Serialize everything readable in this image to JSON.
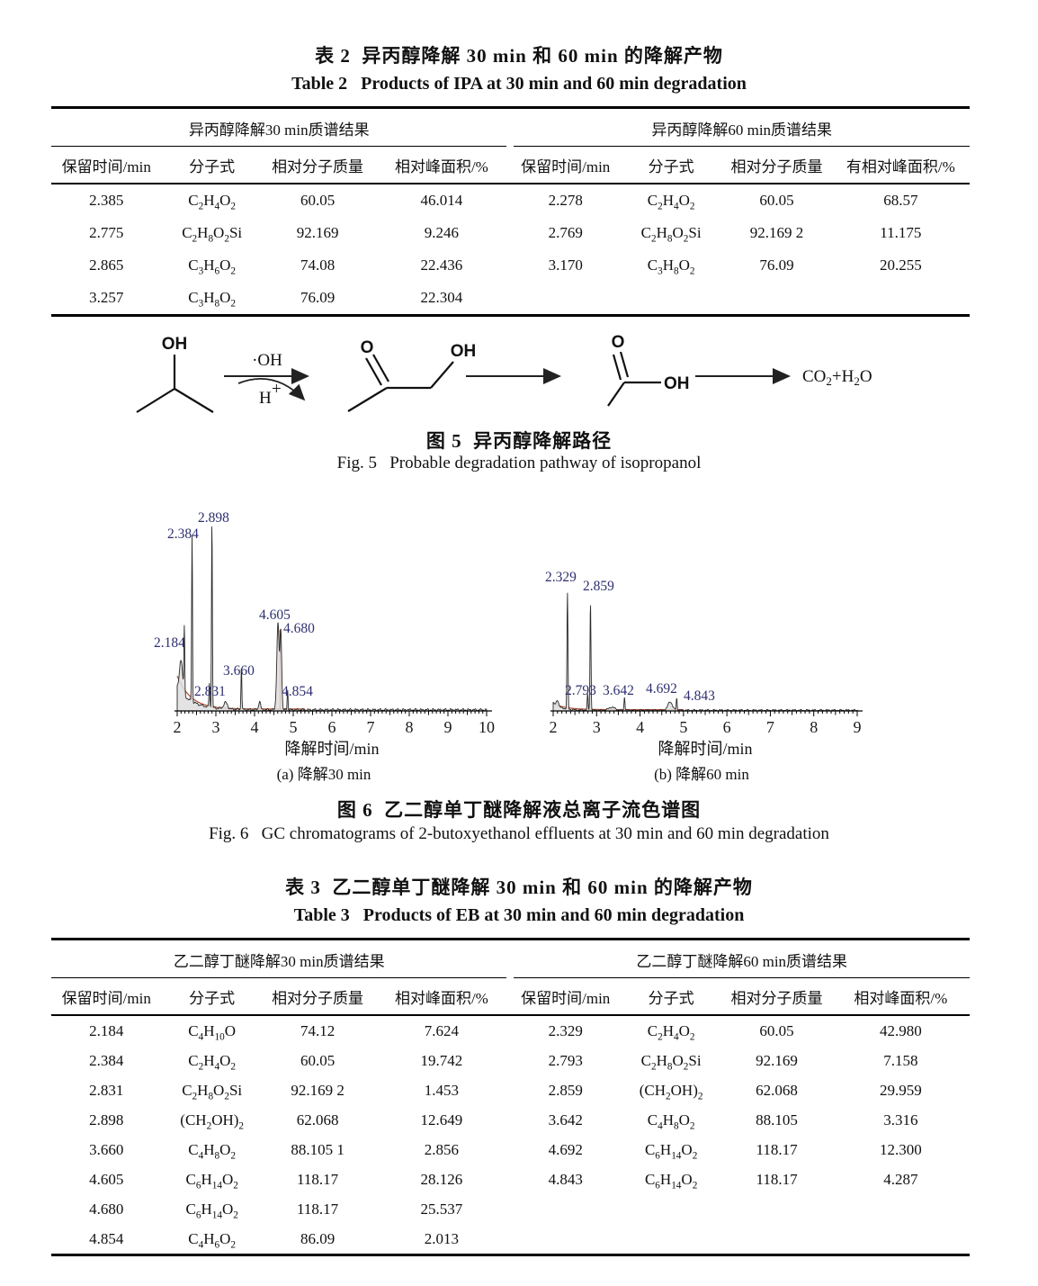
{
  "accent_colors": {
    "peak_label": "#2e2f70",
    "trace": "#2a2a2a",
    "integration_baseline": "#b05030",
    "rule": "#000000"
  },
  "table2": {
    "title_zh": "表 2  异丙醇降解 30 min 和 60 min 的降解产物",
    "title_en": "Table 2   Products of IPA at 30 min and 60 min degradation",
    "group_left": "异丙醇降解30 min质谱结果",
    "group_right": "异丙醇降解60 min质谱结果",
    "columns_left": [
      "保留时间/min",
      "分子式",
      "相对分子质量",
      "相对峰面积/%"
    ],
    "columns_right": [
      "保留时间/min",
      "分子式",
      "相对分子质量",
      "有相对峰面积/%"
    ],
    "rows": [
      [
        "2.385",
        "C2H4O2",
        "60.05",
        "46.014",
        "2.278",
        "C2H4O2",
        "60.05",
        "68.57"
      ],
      [
        "2.775",
        "C2H8O2Si",
        "92.169",
        "9.246",
        "2.769",
        "C2H8O2Si",
        "92.169 2",
        "11.175"
      ],
      [
        "2.865",
        "C3H6O2",
        "74.08",
        "22.436",
        "3.170",
        "C3H8O2",
        "76.09",
        "20.255"
      ],
      [
        "3.257",
        "C3H8O2",
        "76.09",
        "22.304",
        "",
        "",
        "",
        ""
      ]
    ]
  },
  "figure5": {
    "caption_zh": "图 5  异丙醇降解路径",
    "caption_en": "Fig. 5   Probable degradation pathway of isopropanol",
    "labels": {
      "hydroxyl": "OH",
      "oxygen": "O",
      "radical": "·OH",
      "proton_base": "H",
      "proton_sup": "+",
      "product_parts": [
        "CO",
        "2",
        "+H",
        "2",
        "O"
      ]
    }
  },
  "figure6": {
    "caption_zh": "图 6  乙二醇单丁醚降解液总离子流色谱图",
    "caption_en": "Fig. 6   GC chromatograms of 2-butoxyethanol effluents at 30 min and 60 min degradation"
  },
  "chart_data": [
    {
      "type": "line",
      "panel": "a",
      "title": "(a) 降解30 min",
      "xlabel": "降解时间/min",
      "xlim": [
        2,
        10
      ],
      "xticks": [
        2,
        3,
        4,
        5,
        6,
        7,
        8,
        9,
        10
      ],
      "grid": false,
      "peaks": [
        {
          "rt": 2.184,
          "label": "2.184",
          "rel_height": 0.36
        },
        {
          "rt": 2.384,
          "label": "2.384",
          "rel_height": 0.9
        },
        {
          "rt": 2.831,
          "label": "2.831",
          "rel_height": 0.13
        },
        {
          "rt": 2.898,
          "label": "2.898",
          "rel_height": 1.0
        },
        {
          "rt": 3.66,
          "label": "3.660",
          "rel_height": 0.24
        },
        {
          "rt": 4.605,
          "label": "4.605",
          "rel_height": 0.47
        },
        {
          "rt": 4.68,
          "label": "4.680",
          "rel_height": 0.42
        },
        {
          "rt": 4.854,
          "label": "4.854",
          "rel_height": 0.11
        }
      ]
    },
    {
      "type": "line",
      "panel": "b",
      "title": "(b) 降解60 min",
      "xlabel": "降解时间/min",
      "xlim": [
        2,
        9
      ],
      "xticks": [
        2,
        3,
        4,
        5,
        6,
        7,
        8,
        9
      ],
      "grid": false,
      "peaks": [
        {
          "rt": 2.329,
          "label": "2.329",
          "rel_height": 0.95
        },
        {
          "rt": 2.793,
          "label": "2.793",
          "rel_height": 0.13
        },
        {
          "rt": 2.859,
          "label": "2.859",
          "rel_height": 0.88
        },
        {
          "rt": 3.642,
          "label": "3.642",
          "rel_height": 0.11
        },
        {
          "rt": 4.692,
          "label": "4.692",
          "rel_height": 0.07
        },
        {
          "rt": 4.843,
          "label": "4.843",
          "rel_height": 0.1
        }
      ]
    }
  ],
  "table3": {
    "title_zh": "表 3  乙二醇单丁醚降解 30 min 和 60 min 的降解产物",
    "title_en": "Table 3   Products of EB at 30 min and 60 min degradation",
    "group_left": "乙二醇丁醚降解30 min质谱结果",
    "group_right": "乙二醇丁醚降解60 min质谱结果",
    "columns_left": [
      "保留时间/min",
      "分子式",
      "相对分子质量",
      "相对峰面积/%"
    ],
    "columns_right": [
      "保留时间/min",
      "分子式",
      "相对分子质量",
      "相对峰面积/%"
    ],
    "rows": [
      [
        "2.184",
        "C4H10O",
        "74.12",
        "7.624",
        "2.329",
        "C2H4O2",
        "60.05",
        "42.980"
      ],
      [
        "2.384",
        "C2H4O2",
        "60.05",
        "19.742",
        "2.793",
        "C2H8O2Si",
        "92.169",
        "7.158"
      ],
      [
        "2.831",
        "C2H8O2Si",
        "92.169 2",
        "1.453",
        "2.859",
        "(CH2OH)2",
        "62.068",
        "29.959"
      ],
      [
        "2.898",
        "(CH2OH)2",
        "62.068",
        "12.649",
        "3.642",
        "C4H8O2",
        "88.105",
        "3.316"
      ],
      [
        "3.660",
        "C4H8O2",
        "88.105 1",
        "2.856",
        "4.692",
        "C6H14O2",
        "118.17",
        "12.300"
      ],
      [
        "4.605",
        "C6H14O2",
        "118.17",
        "28.126",
        "4.843",
        "C6H14O2",
        "118.17",
        "4.287"
      ],
      [
        "4.680",
        "C6H14O2",
        "118.17",
        "25.537",
        "",
        "",
        "",
        ""
      ],
      [
        "4.854",
        "C4H6O2",
        "86.09",
        "2.013",
        "",
        "",
        "",
        ""
      ]
    ]
  }
}
